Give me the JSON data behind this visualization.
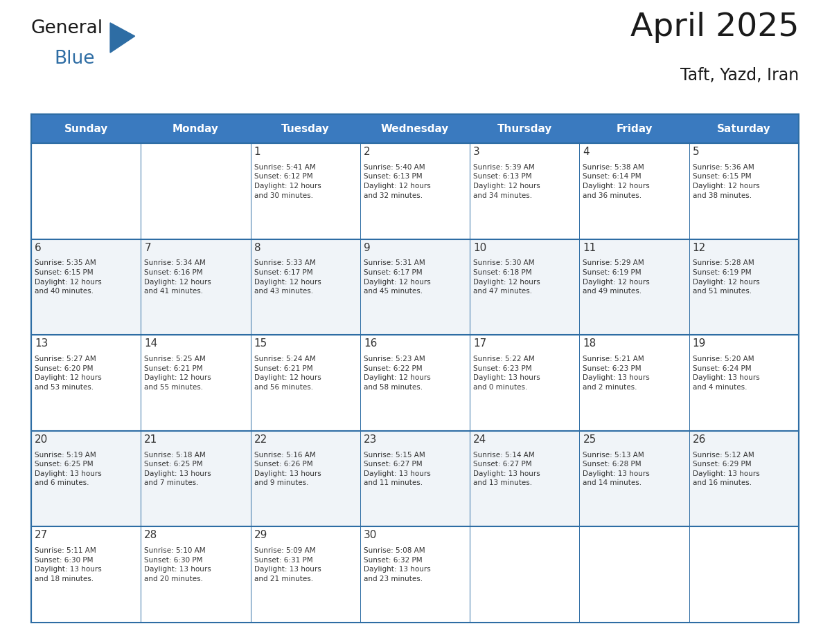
{
  "title": "April 2025",
  "subtitle": "Taft, Yazd, Iran",
  "days_of_week": [
    "Sunday",
    "Monday",
    "Tuesday",
    "Wednesday",
    "Thursday",
    "Friday",
    "Saturday"
  ],
  "header_bg": "#3a7abf",
  "header_text": "#ffffff",
  "cell_bg_odd": "#f0f4f8",
  "cell_bg_even": "#ffffff",
  "border_color": "#2e6da4",
  "text_color": "#333333",
  "title_color": "#1a1a1a",
  "logo_color_general": "#1a1a1a",
  "logo_color_blue": "#2e6da4",
  "calendar_data": [
    [
      {
        "day": "",
        "info": ""
      },
      {
        "day": "",
        "info": ""
      },
      {
        "day": "1",
        "info": "Sunrise: 5:41 AM\nSunset: 6:12 PM\nDaylight: 12 hours\nand 30 minutes."
      },
      {
        "day": "2",
        "info": "Sunrise: 5:40 AM\nSunset: 6:13 PM\nDaylight: 12 hours\nand 32 minutes."
      },
      {
        "day": "3",
        "info": "Sunrise: 5:39 AM\nSunset: 6:13 PM\nDaylight: 12 hours\nand 34 minutes."
      },
      {
        "day": "4",
        "info": "Sunrise: 5:38 AM\nSunset: 6:14 PM\nDaylight: 12 hours\nand 36 minutes."
      },
      {
        "day": "5",
        "info": "Sunrise: 5:36 AM\nSunset: 6:15 PM\nDaylight: 12 hours\nand 38 minutes."
      }
    ],
    [
      {
        "day": "6",
        "info": "Sunrise: 5:35 AM\nSunset: 6:15 PM\nDaylight: 12 hours\nand 40 minutes."
      },
      {
        "day": "7",
        "info": "Sunrise: 5:34 AM\nSunset: 6:16 PM\nDaylight: 12 hours\nand 41 minutes."
      },
      {
        "day": "8",
        "info": "Sunrise: 5:33 AM\nSunset: 6:17 PM\nDaylight: 12 hours\nand 43 minutes."
      },
      {
        "day": "9",
        "info": "Sunrise: 5:31 AM\nSunset: 6:17 PM\nDaylight: 12 hours\nand 45 minutes."
      },
      {
        "day": "10",
        "info": "Sunrise: 5:30 AM\nSunset: 6:18 PM\nDaylight: 12 hours\nand 47 minutes."
      },
      {
        "day": "11",
        "info": "Sunrise: 5:29 AM\nSunset: 6:19 PM\nDaylight: 12 hours\nand 49 minutes."
      },
      {
        "day": "12",
        "info": "Sunrise: 5:28 AM\nSunset: 6:19 PM\nDaylight: 12 hours\nand 51 minutes."
      }
    ],
    [
      {
        "day": "13",
        "info": "Sunrise: 5:27 AM\nSunset: 6:20 PM\nDaylight: 12 hours\nand 53 minutes."
      },
      {
        "day": "14",
        "info": "Sunrise: 5:25 AM\nSunset: 6:21 PM\nDaylight: 12 hours\nand 55 minutes."
      },
      {
        "day": "15",
        "info": "Sunrise: 5:24 AM\nSunset: 6:21 PM\nDaylight: 12 hours\nand 56 minutes."
      },
      {
        "day": "16",
        "info": "Sunrise: 5:23 AM\nSunset: 6:22 PM\nDaylight: 12 hours\nand 58 minutes."
      },
      {
        "day": "17",
        "info": "Sunrise: 5:22 AM\nSunset: 6:23 PM\nDaylight: 13 hours\nand 0 minutes."
      },
      {
        "day": "18",
        "info": "Sunrise: 5:21 AM\nSunset: 6:23 PM\nDaylight: 13 hours\nand 2 minutes."
      },
      {
        "day": "19",
        "info": "Sunrise: 5:20 AM\nSunset: 6:24 PM\nDaylight: 13 hours\nand 4 minutes."
      }
    ],
    [
      {
        "day": "20",
        "info": "Sunrise: 5:19 AM\nSunset: 6:25 PM\nDaylight: 13 hours\nand 6 minutes."
      },
      {
        "day": "21",
        "info": "Sunrise: 5:18 AM\nSunset: 6:25 PM\nDaylight: 13 hours\nand 7 minutes."
      },
      {
        "day": "22",
        "info": "Sunrise: 5:16 AM\nSunset: 6:26 PM\nDaylight: 13 hours\nand 9 minutes."
      },
      {
        "day": "23",
        "info": "Sunrise: 5:15 AM\nSunset: 6:27 PM\nDaylight: 13 hours\nand 11 minutes."
      },
      {
        "day": "24",
        "info": "Sunrise: 5:14 AM\nSunset: 6:27 PM\nDaylight: 13 hours\nand 13 minutes."
      },
      {
        "day": "25",
        "info": "Sunrise: 5:13 AM\nSunset: 6:28 PM\nDaylight: 13 hours\nand 14 minutes."
      },
      {
        "day": "26",
        "info": "Sunrise: 5:12 AM\nSunset: 6:29 PM\nDaylight: 13 hours\nand 16 minutes."
      }
    ],
    [
      {
        "day": "27",
        "info": "Sunrise: 5:11 AM\nSunset: 6:30 PM\nDaylight: 13 hours\nand 18 minutes."
      },
      {
        "day": "28",
        "info": "Sunrise: 5:10 AM\nSunset: 6:30 PM\nDaylight: 13 hours\nand 20 minutes."
      },
      {
        "day": "29",
        "info": "Sunrise: 5:09 AM\nSunset: 6:31 PM\nDaylight: 13 hours\nand 21 minutes."
      },
      {
        "day": "30",
        "info": "Sunrise: 5:08 AM\nSunset: 6:32 PM\nDaylight: 13 hours\nand 23 minutes."
      },
      {
        "day": "",
        "info": ""
      },
      {
        "day": "",
        "info": ""
      },
      {
        "day": "",
        "info": ""
      }
    ]
  ],
  "num_rows": 5,
  "num_cols": 7,
  "fig_width": 11.88,
  "fig_height": 9.18,
  "dpi": 100
}
